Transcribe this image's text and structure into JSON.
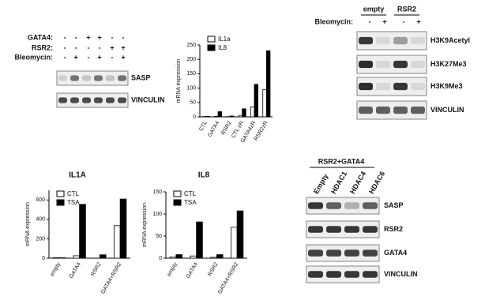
{
  "chart_data": [
    {
      "type": "bar",
      "ylabel": "mRNA expression",
      "categories": [
        "CTL",
        "GATA4",
        "RSR2",
        "CTL zR",
        "GATA4zR",
        "RSR2zR"
      ],
      "series": [
        {
          "name": "IL1a",
          "color": "#ffffff",
          "values": [
            1,
            2,
            1,
            5,
            35,
            95
          ]
        },
        {
          "name": "IL8",
          "color": "#000000",
          "values": [
            2,
            18,
            3,
            28,
            113,
            230
          ]
        }
      ],
      "ylim": [
        0,
        250
      ],
      "yticks": [
        0,
        50,
        100,
        150,
        200,
        250
      ]
    },
    {
      "type": "bar",
      "title": "IL1A",
      "ylabel": "mRNA expression",
      "categories": [
        "empty",
        "GATA4",
        "RSR2",
        "GATA4+RSR2"
      ],
      "series": [
        {
          "name": "CTL",
          "color": "#ffffff",
          "values": [
            5,
            25,
            0,
            335
          ]
        },
        {
          "name": "TSA",
          "color": "#000000",
          "values": [
            5,
            555,
            35,
            610
          ]
        }
      ],
      "ylim": [
        0,
        700
      ],
      "yticks": [
        0,
        200,
        400,
        600
      ]
    },
    {
      "type": "bar",
      "title": "IL8",
      "ylabel": "mRNA expression",
      "categories": [
        "empty",
        "GATA4",
        "RSR2",
        "GATA4+RSR2"
      ],
      "series": [
        {
          "name": "CTL",
          "color": "#ffffff",
          "values": [
            3,
            5,
            2,
            70
          ]
        },
        {
          "name": "TSA",
          "color": "#000000",
          "values": [
            8,
            82,
            8,
            107
          ]
        }
      ],
      "ylim": [
        0,
        150
      ],
      "yticks": [
        0,
        50,
        100,
        150
      ]
    }
  ],
  "blots": [
    {
      "conditions": [
        {
          "label": "GATA4:",
          "signs": [
            "-",
            "-",
            "+",
            "+",
            "-",
            "-"
          ]
        },
        {
          "label": "RSR2:",
          "signs": [
            "-",
            "-",
            "-",
            "-",
            "+",
            "+"
          ]
        },
        {
          "label": "Bleomycin:",
          "signs": [
            "-",
            "+",
            "-",
            "+",
            "-",
            "+"
          ]
        }
      ],
      "rows": [
        "SASP",
        "VINCULIN"
      ]
    },
    {
      "groups": [
        "empty",
        "RSR2"
      ],
      "conditions": [
        {
          "label": "Bleomycin:",
          "signs": [
            "-",
            "+",
            "-",
            "+"
          ]
        }
      ],
      "rows": [
        "H3K9Acetyl",
        "H3K27Me3",
        "H3K9Me3",
        "VINCULIN"
      ]
    },
    {
      "heading": "RSR2+GATA4",
      "lanes": [
        "Empty",
        "HDAC1",
        "HDAC4",
        "HDAC6"
      ],
      "rows": [
        "SASP",
        "RSR2",
        "GATA4",
        "VINCULIN"
      ]
    }
  ]
}
